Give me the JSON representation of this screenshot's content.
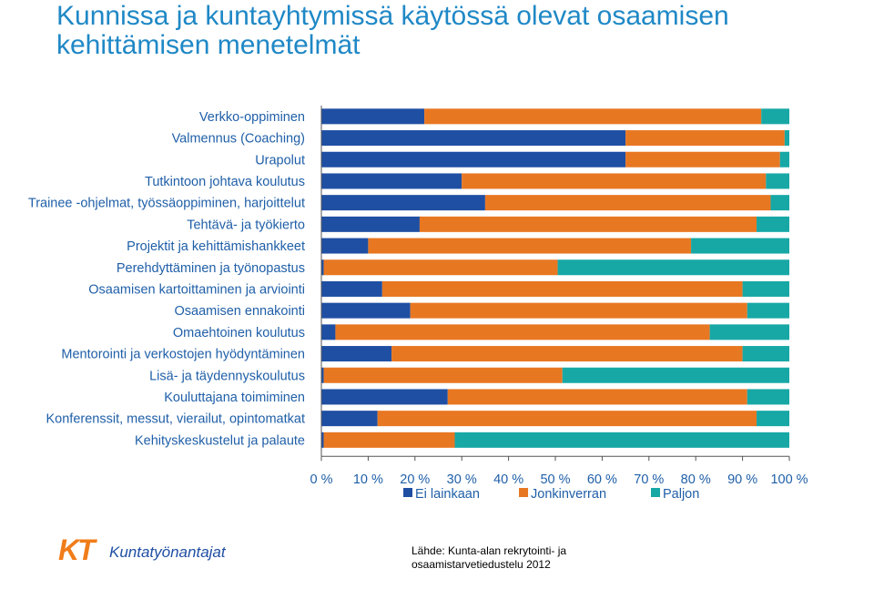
{
  "title": "Kunnissa ja kuntayhtymissä käytössä olevat osaamisen kehittämisen menetelmät",
  "source": {
    "line1": "Lähde: Kunta-alan rekrytointi- ja",
    "line2": "osaamistarvetiedustelu 2012"
  },
  "logo": {
    "mark": "KT",
    "name": "Kuntatyönantajat"
  },
  "colors": {
    "ei": "#1f4fa3",
    "jonkin": "#e87722",
    "paljon": "#17a8a6",
    "text": "#1f5fa8",
    "accent": "#1f88c6"
  },
  "chart_data": {
    "type": "bar",
    "orientation": "horizontal",
    "stacked": "percent",
    "categories": [
      "Verkko-oppiminen",
      "Valmennus (Coaching)",
      "Urapolut",
      "Tutkintoon johtava koulutus",
      "Trainee -ohjelmat, työssäoppiminen, harjoittelut",
      "Tehtävä- ja työkierto",
      "Projektit ja kehittämishankkeet",
      "Perehdyttäminen ja työnopastus",
      "Osaamisen kartoittaminen ja arviointi",
      "Osaamisen ennakointi",
      "Omaehtoinen koulutus",
      "Mentorointi ja verkostojen hyödyntäminen",
      "Lisä- ja täydennyskoulutus",
      "Kouluttajana toimiminen",
      "Konferenssit, messut, vierailut, opintomatkat",
      "Kehityskeskustelut ja palaute"
    ],
    "series": [
      {
        "name": "Ei lainkaan",
        "values": [
          22,
          65,
          65,
          30,
          35,
          21,
          10,
          0.5,
          13,
          19,
          3,
          15,
          0.5,
          27,
          12,
          0.5
        ]
      },
      {
        "name": "Jonkinverran",
        "values": [
          72,
          34,
          33,
          65,
          61,
          72,
          69,
          50,
          77,
          72,
          80,
          75,
          51,
          64,
          81,
          28
        ]
      },
      {
        "name": "Paljon",
        "values": [
          6,
          1,
          2,
          5,
          4,
          7,
          21,
          49.5,
          10,
          9,
          17,
          10,
          48.5,
          9,
          7,
          71.5
        ]
      }
    ],
    "ticks": [
      "0 %",
      "10 %",
      "20 %",
      "30 %",
      "40 %",
      "50 %",
      "60 %",
      "70 %",
      "80 %",
      "90 %",
      "100 %"
    ],
    "xlim": [
      0,
      100
    ],
    "legend": "bottom"
  }
}
